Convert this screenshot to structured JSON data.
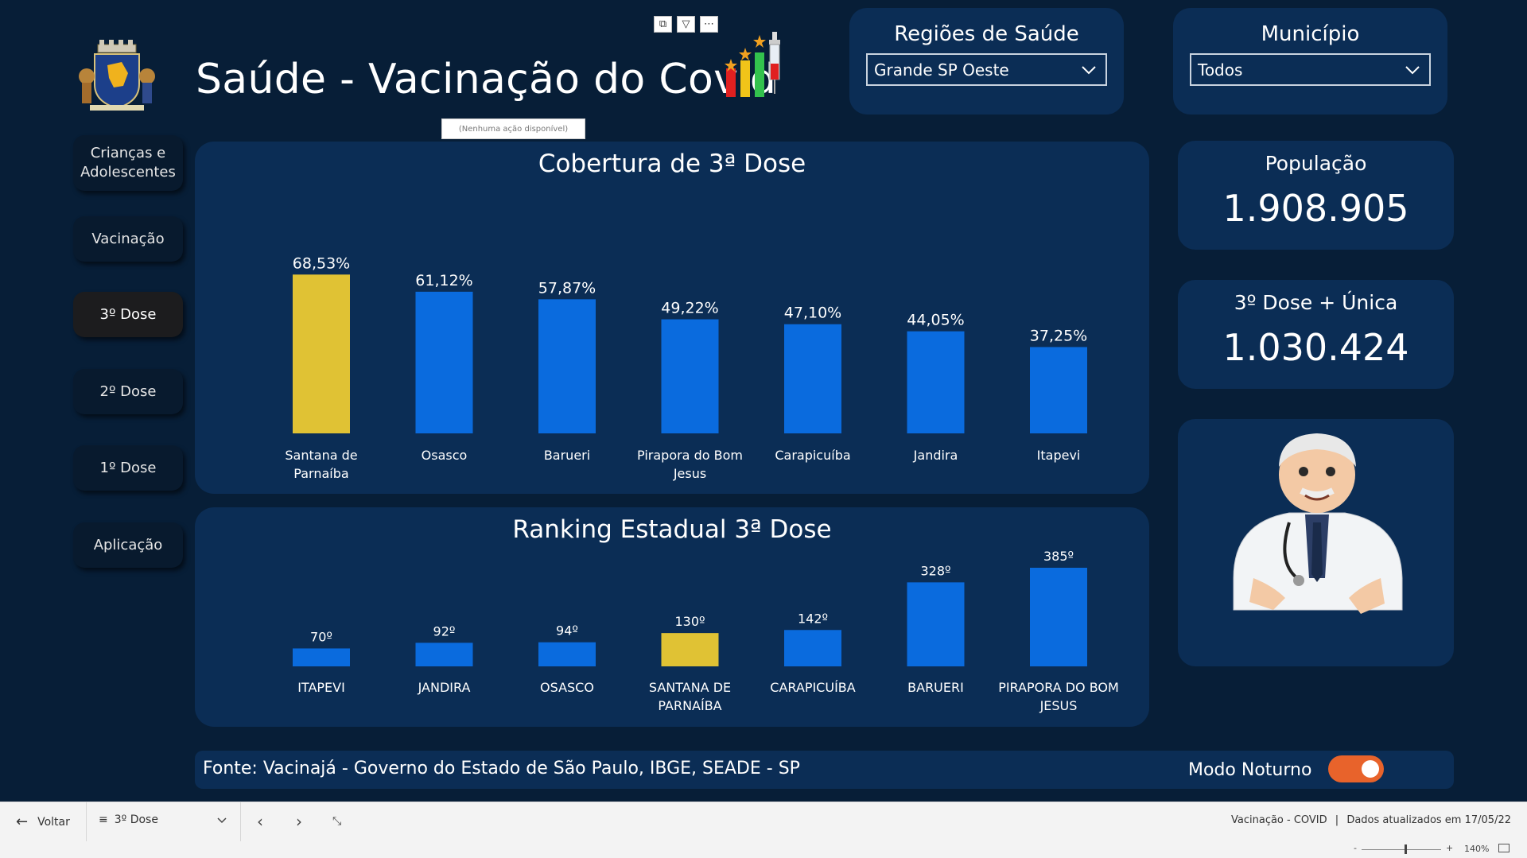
{
  "header": {
    "title": "Saúde - Vacinação do Covid",
    "tooltip": "(Nenhuma ação disponível)",
    "toolbar_icons": [
      "copy-icon",
      "filter-icon",
      "more-icon"
    ]
  },
  "filters": {
    "regioes": {
      "label": "Regiões de Saúde",
      "value": "Grande SP Oeste"
    },
    "municipio": {
      "label": "Município",
      "value": "Todos"
    }
  },
  "nav": {
    "items": [
      {
        "label": "Crianças e Adolescentes"
      },
      {
        "label": "Vacinação"
      },
      {
        "label": "3º Dose",
        "active": true
      },
      {
        "label": "2º Dose"
      },
      {
        "label": "1º Dose"
      },
      {
        "label": "Aplicação"
      }
    ]
  },
  "kpis": {
    "populacao": {
      "label": "População",
      "value": "1.908.905"
    },
    "dose3": {
      "label": "3º Dose + Única",
      "value": "1.030.424"
    }
  },
  "footer": {
    "source": "Fonte: Vacinajá - Governo do Estado de São Paulo, IBGE, SEADE - SP",
    "night_mode_label": "Modo Noturno",
    "night_mode_on": true
  },
  "statusbar": {
    "back_label": "Voltar",
    "page_label": "3º Dose",
    "report_name": "Vacinação - COVID",
    "updated": "Dados atualizados em 17/05/22",
    "zoom": "140%"
  },
  "colors": {
    "background": "#071e37",
    "panel": "#0b2d55",
    "bar": "#0a6bde",
    "highlight": "#e0c234",
    "toggle": "#e8632b"
  },
  "chart_data": [
    {
      "type": "bar",
      "title": "Cobertura de 3ª Dose",
      "categories": [
        "Santana de Parnaíba",
        "Osasco",
        "Barueri",
        "Pirapora do Bom Jesus",
        "Carapicuíba",
        "Jandira",
        "Itapevi"
      ],
      "values": [
        68.53,
        61.12,
        57.87,
        49.22,
        47.1,
        44.05,
        37.25
      ],
      "labels": [
        "68,53%",
        "61,12%",
        "57,87%",
        "49,22%",
        "47,10%",
        "44,05%",
        "37,25%"
      ],
      "highlight": [
        true,
        false,
        false,
        false,
        false,
        false,
        false
      ],
      "ylim": [
        0,
        70
      ]
    },
    {
      "type": "bar",
      "title": "Ranking Estadual 3ª Dose",
      "categories": [
        "ITAPEVI",
        "JANDIRA",
        "OSASCO",
        "SANTANA DE PARNAÍBA",
        "CARAPICUÍBA",
        "BARUERI",
        "PIRAPORA DO BOM JESUS"
      ],
      "values": [
        70,
        92,
        94,
        130,
        142,
        328,
        385
      ],
      "labels": [
        "70º",
        "92º",
        "94º",
        "130º",
        "142º",
        "328º",
        "385º"
      ],
      "highlight": [
        false,
        false,
        false,
        true,
        false,
        false,
        false
      ],
      "ylim": [
        0,
        385
      ]
    }
  ]
}
